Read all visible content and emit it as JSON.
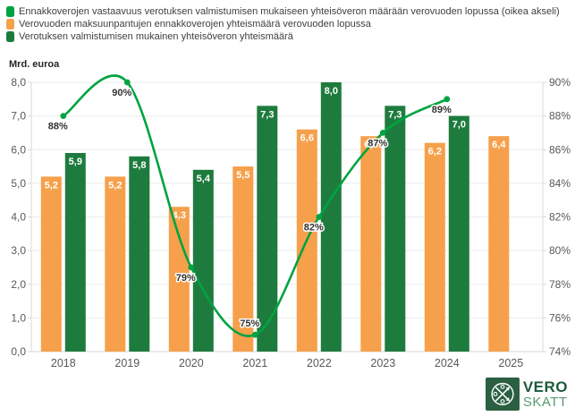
{
  "legend": {
    "items": [
      {
        "label": "Ennakkoverojen vastaavuus verotuksen valmistumisen mukaiseen yhteisöveron määrään verovuoden lopussa (oikea akseli)",
        "color": "#00a341",
        "marker": "line-series-swatch"
      },
      {
        "label": "Verovuoden maksuunpantujen ennakkoverojen yhteismäärä verovuoden lopussa",
        "color": "#f6a04b",
        "marker": "bar-series-swatch"
      },
      {
        "label": "Verotuksen valmistumisen mukainen yhteisöveron yhteismäärä",
        "color": "#1e7b3e",
        "marker": "bar-series-swatch"
      }
    ]
  },
  "chart_data": {
    "type": "bar",
    "categories": [
      "2018",
      "2019",
      "2020",
      "2021",
      "2022",
      "2023",
      "2024",
      "2025"
    ],
    "series": [
      {
        "name": "Verovuoden maksuunpantujen ennakkoverojen yhteismäärä verovuoden lopussa",
        "type": "bar",
        "axis": "left",
        "color": "#f6a04b",
        "values": [
          5.2,
          5.2,
          4.3,
          5.5,
          6.6,
          6.4,
          6.2,
          6.4
        ],
        "labels": [
          "5,2",
          "5,2",
          "4,3",
          "5,5",
          "6,6",
          "6,4",
          "6,2",
          "6,4"
        ]
      },
      {
        "name": "Verotuksen valmistumisen mukainen yhteisöveron yhteismäärä",
        "type": "bar",
        "axis": "left",
        "color": "#1e7b3e",
        "values": [
          5.9,
          5.8,
          5.4,
          7.3,
          8.0,
          7.3,
          7.0,
          null
        ],
        "labels": [
          "5,9",
          "5,8",
          "5,4",
          "7,3",
          "8,0",
          "7,3",
          "7,0",
          null
        ]
      },
      {
        "name": "Ennakkoverojen vastaavuus verotuksen valmistumisen mukaiseen yhteisöveron määrään verovuoden lopussa (oikea akseli)",
        "type": "line",
        "axis": "right",
        "color": "#00a341",
        "values": [
          88,
          90,
          79,
          75,
          82,
          87,
          89,
          null
        ],
        "labels": [
          "88%",
          "90%",
          "79%",
          "75%",
          "82%",
          "87%",
          "89%",
          null
        ],
        "label_positions": [
          "below",
          "below",
          "below",
          "above",
          "below",
          "below",
          "below",
          null
        ]
      }
    ],
    "left_axis": {
      "title": "Mrd. euroa",
      "min": 0,
      "max": 8,
      "step": 1,
      "tick_labels": [
        "0,0",
        "1,0",
        "2,0",
        "3,0",
        "4,0",
        "5,0",
        "6,0",
        "7,0",
        "8,0"
      ]
    },
    "right_axis": {
      "min": 74,
      "max": 90,
      "step": 2,
      "tick_labels": [
        "74%",
        "76%",
        "78%",
        "80%",
        "82%",
        "84%",
        "86%",
        "88%",
        "90%"
      ]
    },
    "grid": true,
    "legend_position": "top-left"
  },
  "logo": {
    "text_top": "VERO",
    "text_bottom": "SKATT"
  }
}
